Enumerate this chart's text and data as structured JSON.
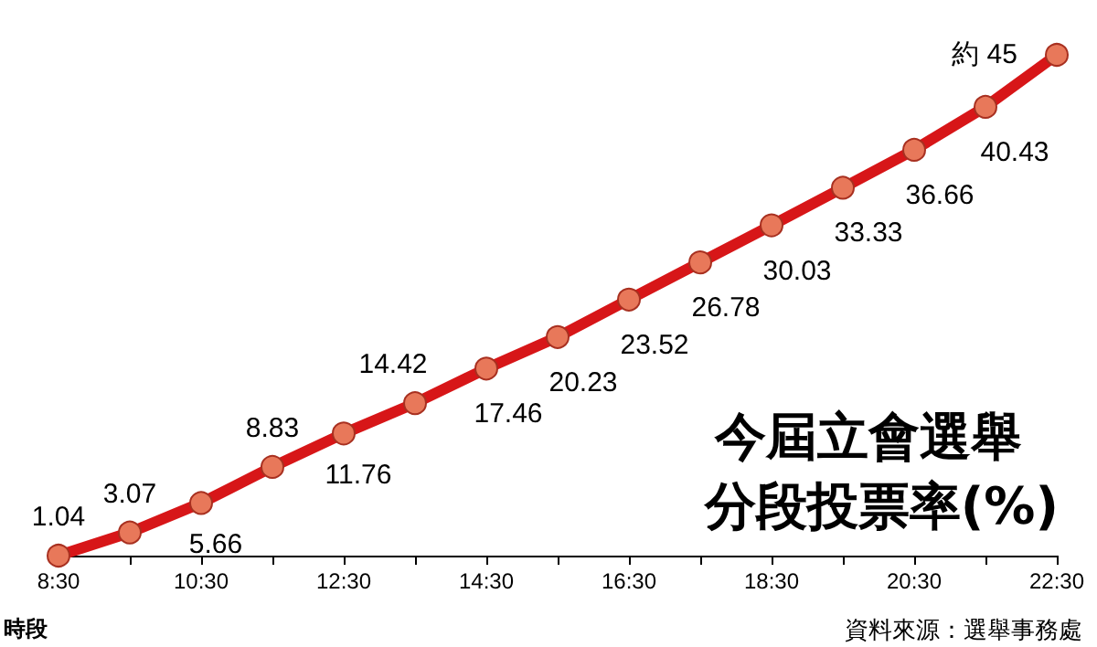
{
  "chart_data": {
    "type": "line",
    "title": "今屆立會選舉",
    "subtitle": "分段投票率(%)",
    "xlabel": "時段",
    "annotations": [
      "資料來源：選舉事務處"
    ],
    "categories": [
      "8:30",
      null,
      "10:30",
      null,
      "12:30",
      null,
      "14:30",
      null,
      "16:30",
      null,
      "18:30",
      null,
      "20:30",
      null,
      "22:30"
    ],
    "series": [
      {
        "color": "#d71618",
        "values": [
          1.04,
          3.07,
          5.66,
          8.83,
          11.76,
          14.42,
          17.46,
          20.23,
          23.52,
          26.78,
          30.03,
          33.33,
          36.66,
          40.43,
          45
        ],
        "value_labels": [
          "1.04",
          "3.07",
          "5.66",
          "8.83",
          "11.76",
          "14.42",
          "17.46",
          "20.23",
          "23.52",
          "26.78",
          "30.03",
          "33.33",
          "36.66",
          "40.43",
          "約 45"
        ]
      }
    ],
    "marker": "circle"
  }
}
